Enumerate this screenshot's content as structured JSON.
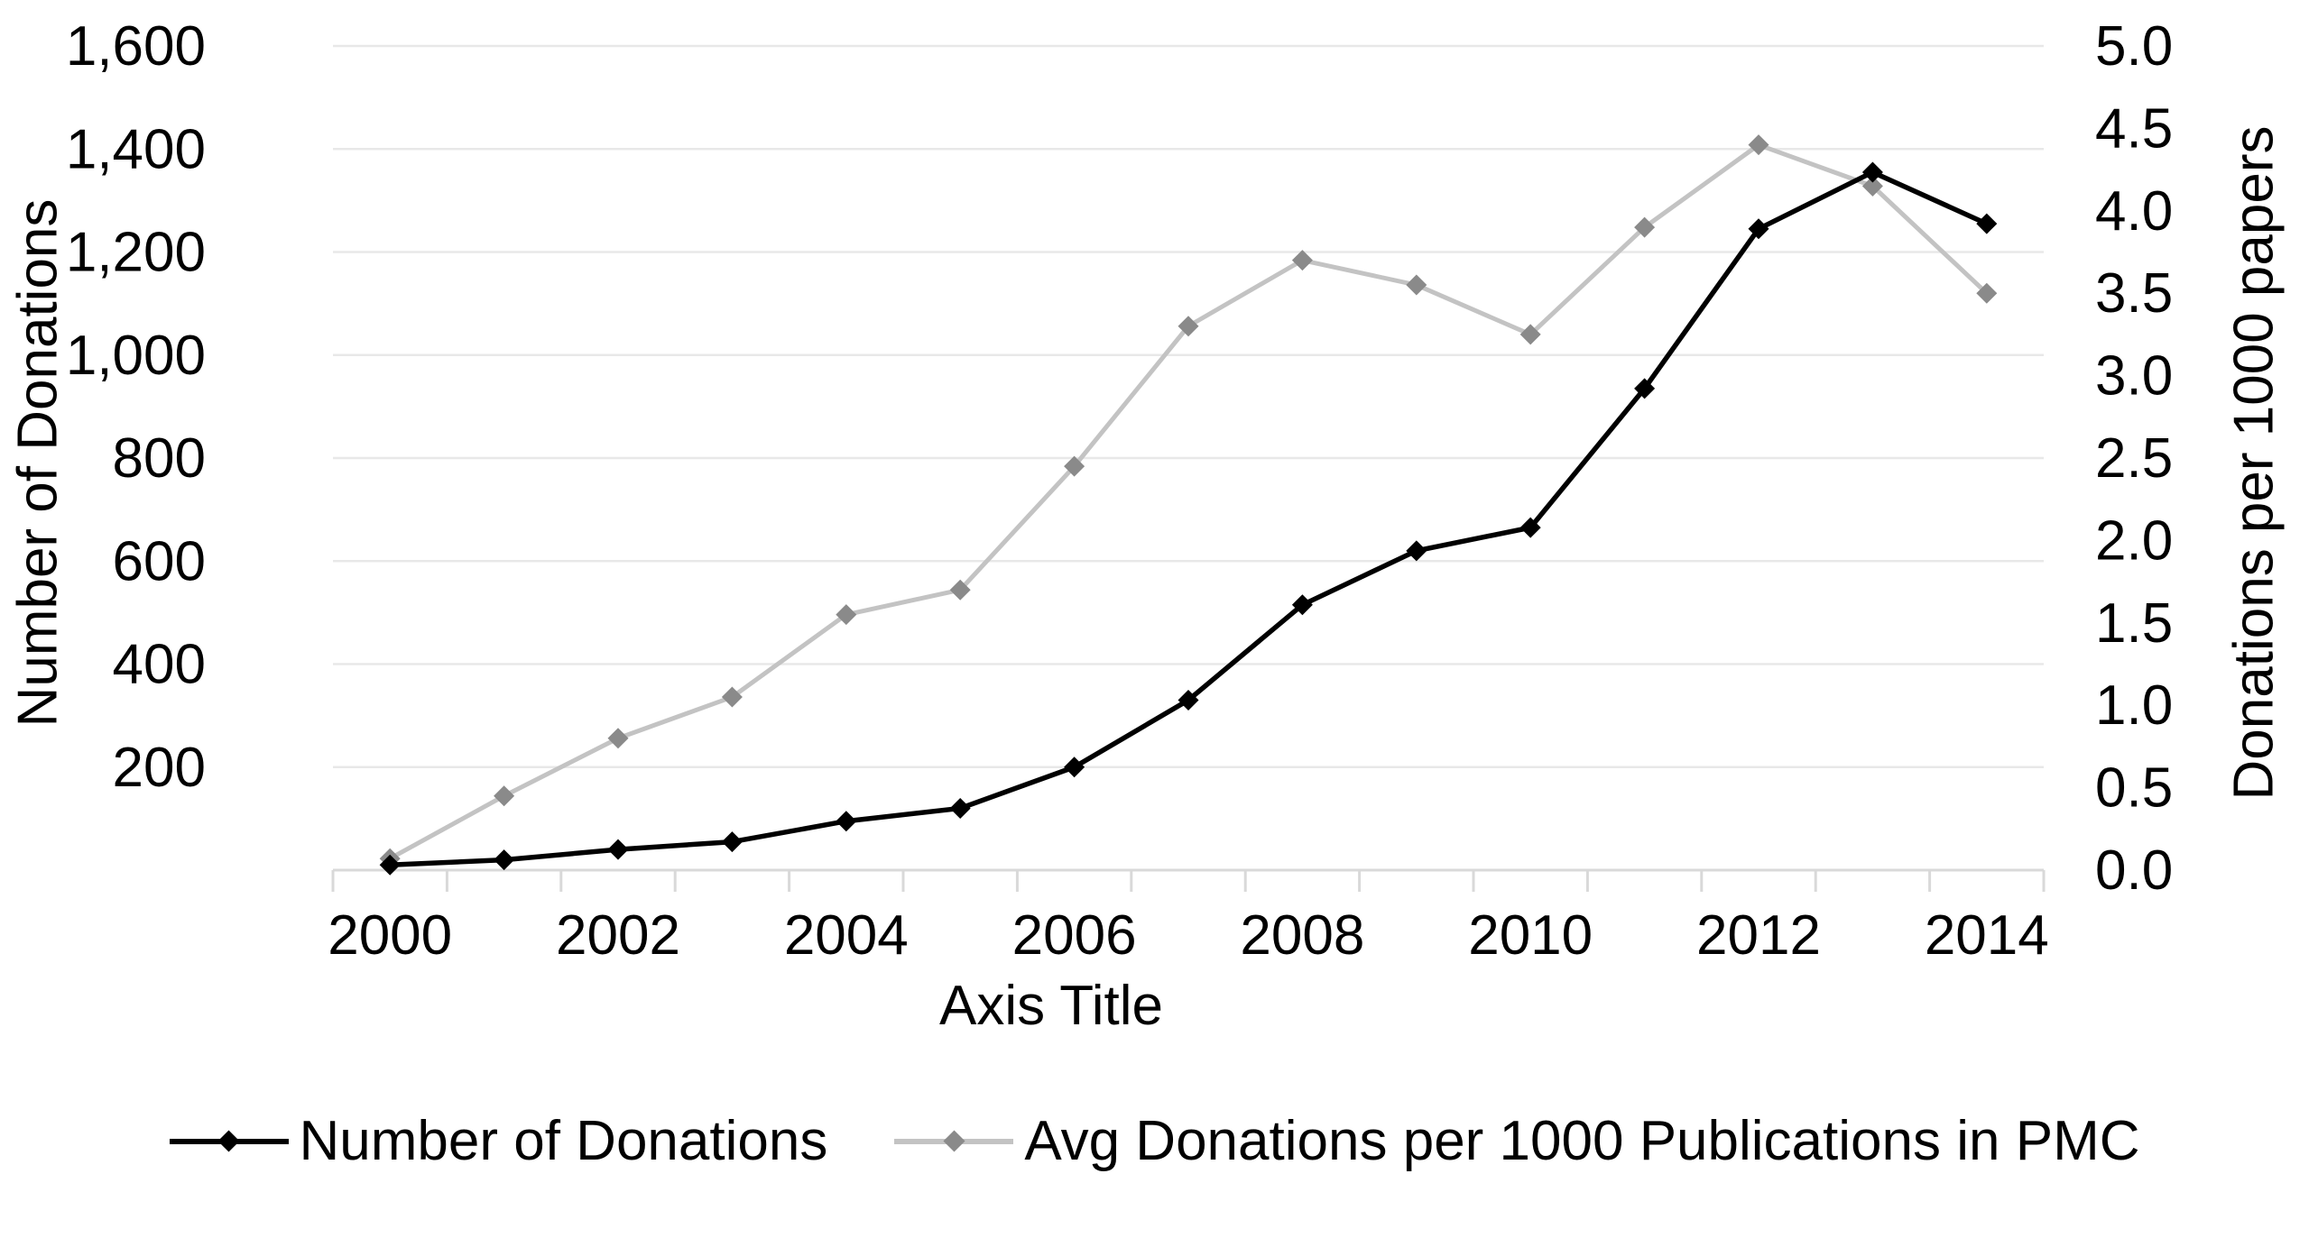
{
  "chart_data": {
    "type": "line",
    "title": "",
    "years": [
      2000,
      2001,
      2002,
      2003,
      2004,
      2005,
      2006,
      2007,
      2008,
      2009,
      2010,
      2011,
      2012,
      2013,
      2014
    ],
    "x_axis": {
      "title": "Axis Title",
      "tick_labels": [
        "2000",
        "2002",
        "2004",
        "2006",
        "2008",
        "2010",
        "2012",
        "2014"
      ]
    },
    "left_axis": {
      "title": "Number of Donations",
      "min": 0,
      "max": 1600,
      "step": 200,
      "tick_labels": [
        "200",
        "400",
        "600",
        "800",
        "1,000",
        "1,200",
        "1,400",
        "1,600"
      ]
    },
    "right_axis": {
      "title": "Donations per 1000 papers",
      "min": 0,
      "max": 5,
      "step": 0.5,
      "tick_labels": [
        "0.0",
        "0.5",
        "1.0",
        "1.5",
        "2.0",
        "2.5",
        "3.0",
        "3.5",
        "4.0",
        "4.5",
        "5.0"
      ]
    },
    "grid": true,
    "legend_position": "bottom",
    "series": [
      {
        "name": "Number of Donations",
        "axis": "left",
        "line_color": "#000000",
        "marker_color": "#000000",
        "values": [
          10,
          20,
          40,
          55,
          95,
          120,
          200,
          330,
          515,
          620,
          665,
          935,
          1245,
          1355,
          1255
        ]
      },
      {
        "name": "Avg Donations per 1000 Publications in PMC",
        "axis": "right",
        "line_color": "#c3c3c3",
        "marker_color": "#8a8a8a",
        "values": [
          0.07,
          0.45,
          0.8,
          1.05,
          1.55,
          1.7,
          2.45,
          3.3,
          3.7,
          3.55,
          3.25,
          3.9,
          4.4,
          4.15,
          3.5
        ]
      }
    ],
    "colors": {
      "gridline": "#e8e8e8",
      "axis_line": "#d9d9d9",
      "tick_mark": "#d9d9d9",
      "text": "#000000"
    }
  }
}
